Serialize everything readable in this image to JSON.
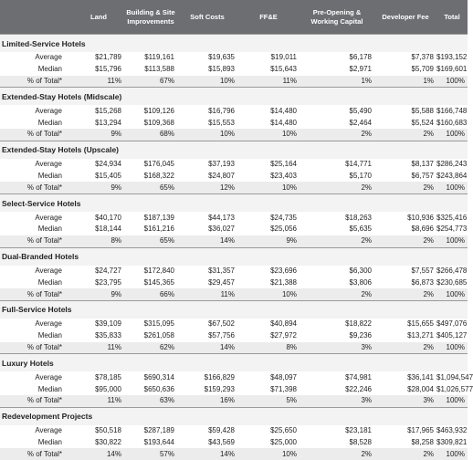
{
  "table": {
    "columns": [
      "Land",
      "Building & Site Improvements",
      "Soft Costs",
      "FF&E",
      "Pre-Opening & Working Capital",
      "Developer Fee",
      "Total"
    ],
    "sections": [
      {
        "title": "Limited-Service Hotels",
        "rows": [
          {
            "label": "Average",
            "values": [
              "$21,789",
              "$119,161",
              "$19,635",
              "$19,011",
              "$6,178",
              "$7,378",
              "$193,152"
            ]
          },
          {
            "label": "Median",
            "values": [
              "$15,796",
              "$113,588",
              "$15,893",
              "$15,643",
              "$2,971",
              "$5,709",
              "$169,601"
            ]
          },
          {
            "label": "% of Total*",
            "values": [
              "11%",
              "67%",
              "10%",
              "11%",
              "1%",
              "1%",
              "100%"
            ]
          }
        ]
      },
      {
        "title": "Extended-Stay Hotels (Midscale)",
        "rows": [
          {
            "label": "Average",
            "values": [
              "$15,268",
              "$109,126",
              "$16,796",
              "$14,480",
              "$5,490",
              "$5,588",
              "$166,748"
            ]
          },
          {
            "label": "Median",
            "values": [
              "$13,294",
              "$109,368",
              "$15,553",
              "$14,480",
              "$2,464",
              "$5,524",
              "$160,683"
            ]
          },
          {
            "label": "% of Total*",
            "values": [
              "9%",
              "68%",
              "10%",
              "10%",
              "2%",
              "2%",
              "100%"
            ]
          }
        ]
      },
      {
        "title": "Extended-Stay Hotels (Upscale)",
        "rows": [
          {
            "label": "Average",
            "values": [
              "$24,934",
              "$176,045",
              "$37,193",
              "$25,164",
              "$14,771",
              "$8,137",
              "$286,243"
            ]
          },
          {
            "label": "Median",
            "values": [
              "$15,405",
              "$168,322",
              "$24,807",
              "$23,403",
              "$5,170",
              "$6,757",
              "$243,864"
            ]
          },
          {
            "label": "% of Total*",
            "values": [
              "9%",
              "65%",
              "12%",
              "10%",
              "2%",
              "2%",
              "100%"
            ]
          }
        ]
      },
      {
        "title": "Select-Service Hotels",
        "rows": [
          {
            "label": "Average",
            "values": [
              "$40,170",
              "$187,139",
              "$44,173",
              "$24,735",
              "$18,263",
              "$10,936",
              "$325,416"
            ]
          },
          {
            "label": "Median",
            "values": [
              "$18,144",
              "$161,216",
              "$36,027",
              "$25,056",
              "$5,635",
              "$8,696",
              "$254,773"
            ]
          },
          {
            "label": "% of Total*",
            "values": [
              "8%",
              "65%",
              "14%",
              "9%",
              "2%",
              "2%",
              "100%"
            ]
          }
        ]
      },
      {
        "title": "Dual-Branded Hotels",
        "rows": [
          {
            "label": "Average",
            "values": [
              "$24,727",
              "$172,840",
              "$31,357",
              "$23,696",
              "$6,300",
              "$7,557",
              "$266,478"
            ]
          },
          {
            "label": "Median",
            "values": [
              "$23,795",
              "$145,365",
              "$29,457",
              "$21,388",
              "$3,806",
              "$6,873",
              "$230,685"
            ]
          },
          {
            "label": "% of Total*",
            "values": [
              "9%",
              "66%",
              "11%",
              "10%",
              "2%",
              "2%",
              "100%"
            ]
          }
        ]
      },
      {
        "title": "Full-Service Hotels",
        "rows": [
          {
            "label": "Average",
            "values": [
              "$39,109",
              "$315,095",
              "$67,502",
              "$40,894",
              "$18,822",
              "$15,655",
              "$497,076"
            ]
          },
          {
            "label": "Median",
            "values": [
              "$35,833",
              "$261,058",
              "$57,756",
              "$27,972",
              "$9,236",
              "$13,271",
              "$405,127"
            ]
          },
          {
            "label": "% of Total*",
            "values": [
              "11%",
              "62%",
              "14%",
              "8%",
              "3%",
              "2%",
              "100%"
            ]
          }
        ]
      },
      {
        "title": "Luxury Hotels",
        "rows": [
          {
            "label": "Average",
            "values": [
              "$78,185",
              "$690,314",
              "$166,829",
              "$48,097",
              "$74,981",
              "$36,141",
              "$1,094,547"
            ]
          },
          {
            "label": "Median",
            "values": [
              "$95,000",
              "$650,636",
              "$159,293",
              "$71,398",
              "$22,246",
              "$28,004",
              "$1,026,577"
            ]
          },
          {
            "label": "% of Total*",
            "values": [
              "11%",
              "63%",
              "16%",
              "5%",
              "3%",
              "3%",
              "100%"
            ]
          }
        ]
      },
      {
        "title": "Redevelopment Projects",
        "rows": [
          {
            "label": "Average",
            "values": [
              "$50,518",
              "$287,189",
              "$59,428",
              "$25,650",
              "$23,181",
              "$17,965",
              "$463,932"
            ]
          },
          {
            "label": "Median",
            "values": [
              "$30,822",
              "$193,644",
              "$43,569",
              "$25,000",
              "$8,528",
              "$8,258",
              "$309,821"
            ]
          },
          {
            "label": "% of Total*",
            "values": [
              "14%",
              "57%",
              "14%",
              "10%",
              "2%",
              "2%",
              "100%"
            ]
          }
        ]
      }
    ]
  }
}
